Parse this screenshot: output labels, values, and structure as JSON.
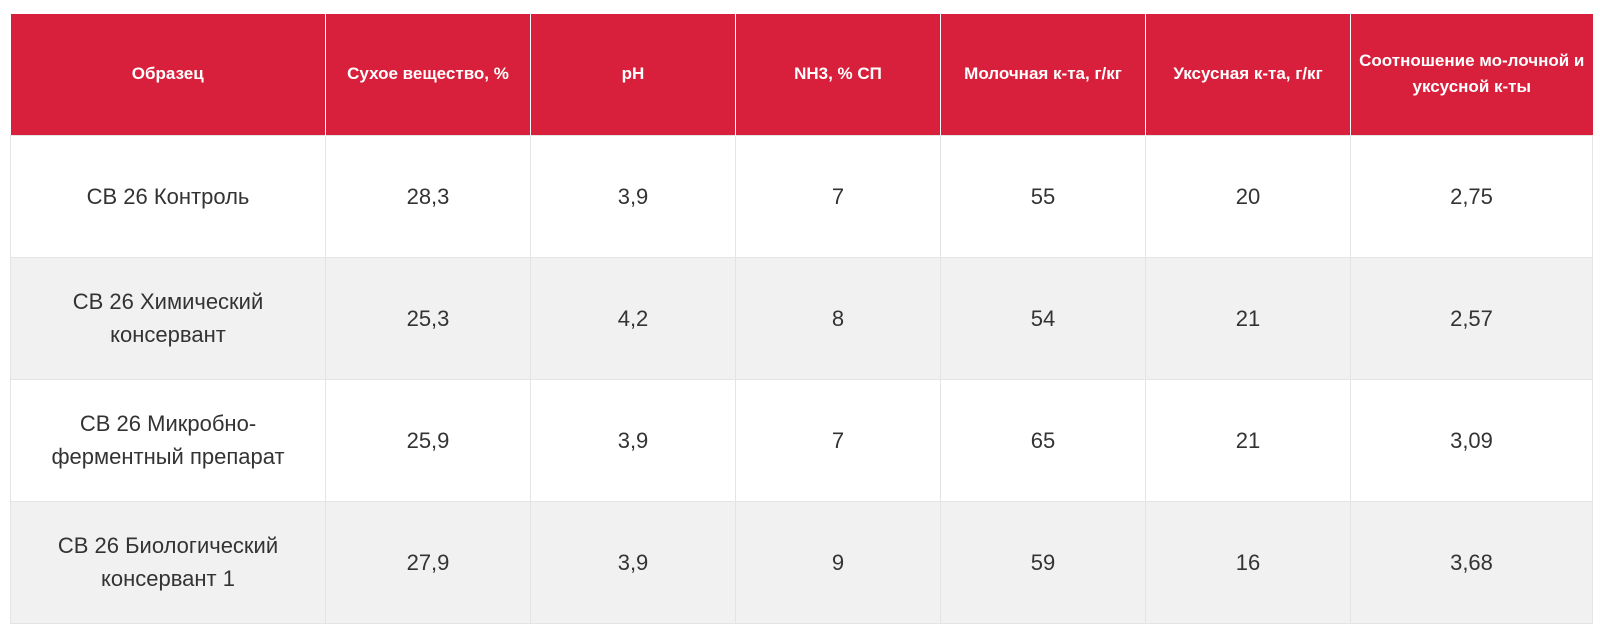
{
  "table": {
    "headers": [
      "Образец",
      "Сухое вещество, %",
      "pH",
      "NH3, % СП",
      "Молочная к-та, г/кг",
      "Уксусная к-та, г/кг",
      "Соотношение мо-лочной и уксусной к-ты"
    ],
    "rows": [
      [
        "СВ 26 Контроль",
        "28,3",
        "3,9",
        "7",
        "55",
        "20",
        "2,75"
      ],
      [
        "СВ 26 Химический консервант",
        "25,3",
        "4,2",
        "8",
        "54",
        "21",
        "2,57"
      ],
      [
        "СВ 26 Микробно-ферментный препарат",
        "25,9",
        "3,9",
        "7",
        "65",
        "21",
        "3,09"
      ],
      [
        "СВ 26 Биологический консервант 1",
        "27,9",
        "3,9",
        "9",
        "59",
        "16",
        "3,68"
      ]
    ]
  },
  "colors": {
    "header_bg": "#d8203c",
    "header_text": "#ffffff",
    "row_alt_bg": "#f1f1f1",
    "cell_text": "#333333"
  }
}
